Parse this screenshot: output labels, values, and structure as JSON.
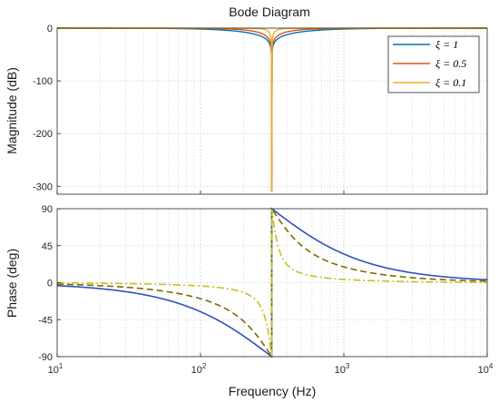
{
  "chart_data": {
    "type": "line",
    "title": "Bode Diagram",
    "xlabel": "Frequency  (Hz)",
    "x_scale": "log",
    "xlim": [
      10,
      10000
    ],
    "x_ticks": [
      {
        "base": "10",
        "exp": "1"
      },
      {
        "base": "10",
        "exp": "2"
      },
      {
        "base": "10",
        "exp": "3"
      },
      {
        "base": "10",
        "exp": "4"
      }
    ],
    "grid": true,
    "notch_frequency": 314,
    "magnitude": {
      "ylabel": "Magnitude (dB)",
      "ylim": [
        -315,
        0
      ],
      "y_ticks": [
        "0",
        "-100",
        "-200",
        "-300"
      ],
      "y_tick_values": [
        0,
        -100,
        -200,
        -300
      ],
      "legend_position": "top-right",
      "series": [
        {
          "name": "ξ = 1",
          "color": "#0072bd",
          "zeta": 1,
          "min_db": -310
        },
        {
          "name": "ξ = 0.5",
          "color": "#d95319",
          "zeta": 0.5,
          "min_db": -310
        },
        {
          "name": "ξ = 0.1",
          "color": "#edb120",
          "zeta": 0.1,
          "min_db": -310
        }
      ]
    },
    "phase": {
      "ylabel": "Phase (deg)",
      "ylim": [
        -90,
        90
      ],
      "y_ticks": [
        "90",
        "45",
        "0",
        "-45",
        "-90"
      ],
      "y_tick_values": [
        90,
        45,
        0,
        -45,
        -90
      ],
      "series": [
        {
          "zeta": 1,
          "color": "#3050c0",
          "style": "solid"
        },
        {
          "zeta": 0.5,
          "color": "#7f6a00",
          "style": "dashed"
        },
        {
          "zeta": 0.1,
          "color": "#c9c020",
          "style": "dashdot"
        }
      ]
    }
  }
}
